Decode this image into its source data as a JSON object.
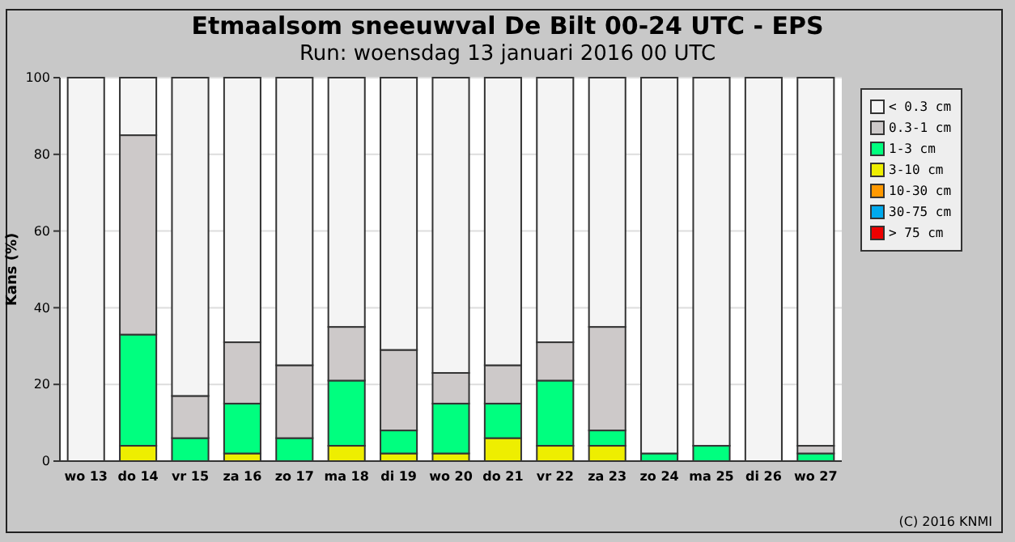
{
  "chart_data": {
    "type": "bar",
    "stacked": true,
    "title": "Etmaalsom sneeuwval De Bilt 00-24 UTC - EPS",
    "subtitle": "Run: woensdag 13 januari 2016   00 UTC",
    "ylabel": "Kans (%)",
    "annotations": [
      "(C) 2016 KNMI"
    ],
    "categories": [
      "wo 13",
      "do 14",
      "vr 15",
      "za 16",
      "zo 17",
      "ma 18",
      "di 19",
      "wo 20",
      "do 21",
      "vr 22",
      "za 23",
      "zo 24",
      "ma 25",
      "di 26",
      "wo 27"
    ],
    "ylim": [
      0,
      100
    ],
    "yticks": [
      0,
      20,
      40,
      60,
      80,
      100
    ],
    "grid": "y",
    "legend": "right",
    "series": [
      {
        "name": "> 75 cm",
        "color": "#ee0000",
        "values": [
          0,
          0,
          0,
          0,
          0,
          0,
          0,
          0,
          0,
          0,
          0,
          0,
          0,
          0,
          0
        ]
      },
      {
        "name": "30-75 cm",
        "color": "#00aaee",
        "values": [
          0,
          0,
          0,
          0,
          0,
          0,
          0,
          0,
          0,
          0,
          0,
          0,
          0,
          0,
          0
        ]
      },
      {
        "name": "10-30 cm",
        "color": "#ff9900",
        "values": [
          0,
          0,
          0,
          0,
          0,
          0,
          0,
          0,
          0,
          0,
          0,
          0,
          0,
          0,
          0
        ]
      },
      {
        "name": "3-10 cm",
        "color": "#eeee00",
        "values": [
          0,
          4,
          0,
          2,
          0,
          4,
          2,
          2,
          6,
          4,
          4,
          0,
          0,
          0,
          0
        ]
      },
      {
        "name": "1-3 cm",
        "color": "#00ff7f",
        "values": [
          0,
          29,
          6,
          13,
          6,
          17,
          6,
          13,
          9,
          17,
          4,
          2,
          4,
          0,
          2
        ]
      },
      {
        "name": "0.3-1 cm",
        "color": "#cdc9c9",
        "values": [
          0,
          52,
          11,
          16,
          19,
          14,
          21,
          8,
          10,
          10,
          27,
          0,
          0,
          0,
          2
        ]
      },
      {
        "name": "< 0.3 cm",
        "color": "#f4f4f4",
        "values": [
          100,
          15,
          83,
          69,
          75,
          65,
          71,
          77,
          75,
          69,
          65,
          98,
          96,
          100,
          96
        ]
      }
    ]
  }
}
